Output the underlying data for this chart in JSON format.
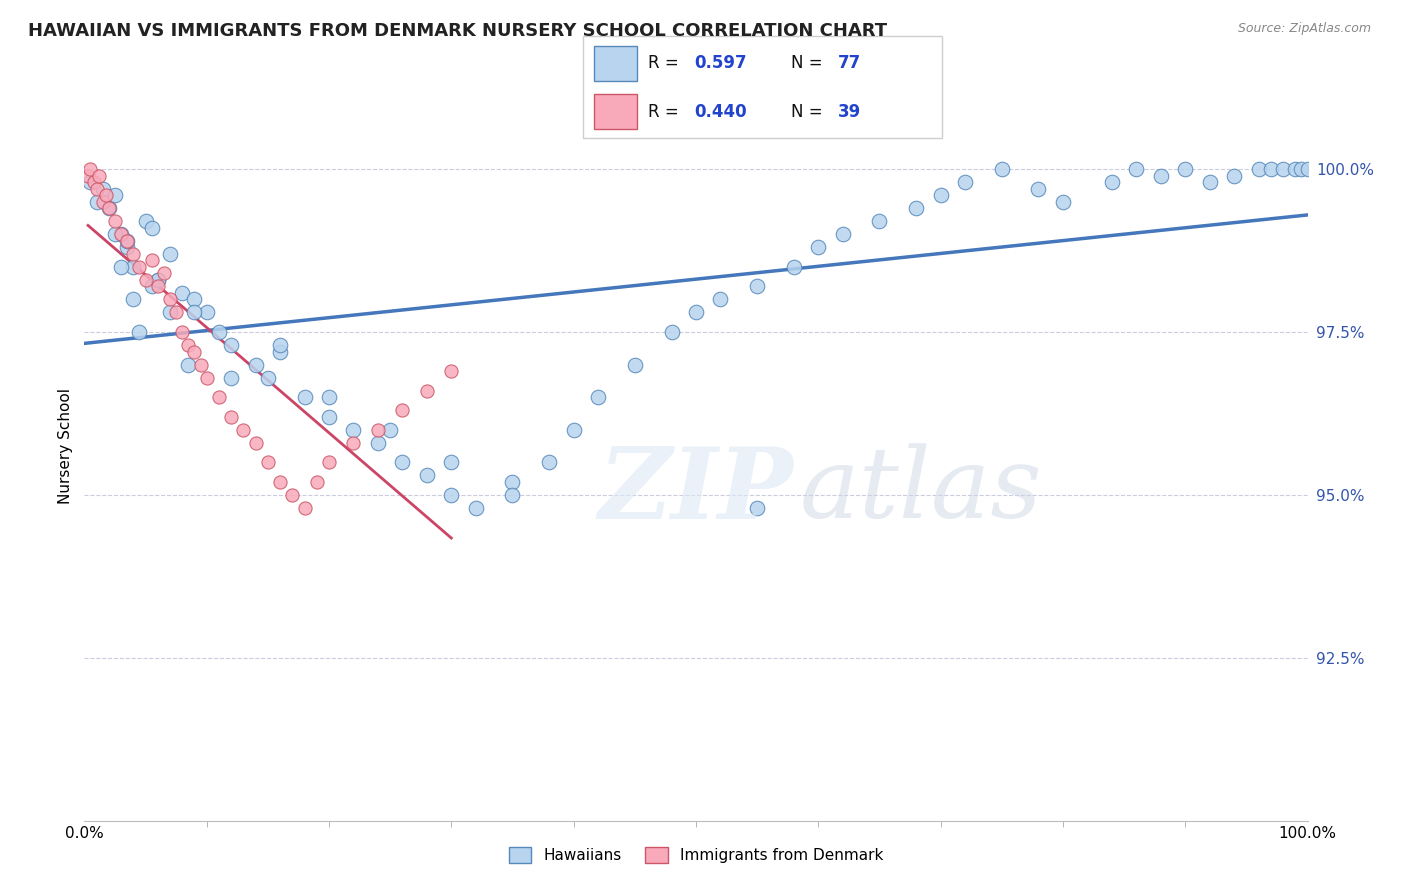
{
  "title": "HAWAIIAN VS IMMIGRANTS FROM DENMARK NURSERY SCHOOL CORRELATION CHART",
  "source": "Source: ZipAtlas.com",
  "ylabel": "Nursery School",
  "yticks": [
    92.5,
    95.0,
    97.5,
    100.0
  ],
  "ytick_labels": [
    "92.5%",
    "95.0%",
    "97.5%",
    "100.0%"
  ],
  "xmin": 0.0,
  "xmax": 100.0,
  "ymin": 90.0,
  "ymax": 101.5,
  "legend_blue_R": "0.597",
  "legend_blue_N": "77",
  "legend_pink_R": "0.440",
  "legend_pink_N": "39",
  "legend_label_blue": "Hawaiians",
  "legend_label_pink": "Immigrants from Denmark",
  "blue_face": "#b8d4ee",
  "blue_edge": "#5588bb",
  "blue_trend": "#4477bb",
  "pink_face": "#f8aabb",
  "pink_edge": "#cc5566",
  "pink_trend": "#cc4466",
  "blue_scatter_x": [
    0.5,
    1.0,
    1.5,
    2.0,
    2.5,
    3.0,
    3.5,
    4.0,
    5.0,
    5.5,
    6.0,
    7.0,
    8.0,
    9.0,
    10.0,
    11.0,
    12.0,
    14.0,
    15.0,
    16.0,
    18.0,
    20.0,
    22.0,
    24.0,
    26.0,
    28.0,
    30.0,
    32.0,
    35.0,
    38.0,
    40.0,
    42.0,
    45.0,
    48.0,
    50.0,
    52.0,
    55.0,
    58.0,
    60.0,
    62.0,
    65.0,
    68.0,
    70.0,
    72.0,
    75.0,
    78.0,
    80.0,
    84.0,
    86.0,
    88.0,
    90.0,
    92.0,
    94.0,
    96.0,
    97.0,
    98.0,
    99.0,
    99.5,
    100.0,
    3.0,
    4.0,
    2.5,
    5.5,
    7.0,
    3.5,
    6.0,
    4.5,
    8.5,
    12.0,
    16.0,
    9.0,
    20.0,
    25.0,
    30.0,
    35.0,
    55.0
  ],
  "blue_scatter_y": [
    99.8,
    99.5,
    99.7,
    99.4,
    99.6,
    99.0,
    98.8,
    98.5,
    99.2,
    99.1,
    98.3,
    98.7,
    98.1,
    98.0,
    97.8,
    97.5,
    97.3,
    97.0,
    96.8,
    97.2,
    96.5,
    96.2,
    96.0,
    95.8,
    95.5,
    95.3,
    95.0,
    94.8,
    95.2,
    95.5,
    96.0,
    96.5,
    97.0,
    97.5,
    97.8,
    98.0,
    98.2,
    98.5,
    98.8,
    99.0,
    99.2,
    99.4,
    99.6,
    99.8,
    100.0,
    99.7,
    99.5,
    99.8,
    100.0,
    99.9,
    100.0,
    99.8,
    99.9,
    100.0,
    100.0,
    100.0,
    100.0,
    100.0,
    100.0,
    98.5,
    98.0,
    99.0,
    98.2,
    97.8,
    98.9,
    98.3,
    97.5,
    97.0,
    96.8,
    97.3,
    97.8,
    96.5,
    96.0,
    95.5,
    95.0,
    94.8
  ],
  "pink_scatter_x": [
    0.3,
    0.5,
    0.8,
    1.0,
    1.2,
    1.5,
    1.8,
    2.0,
    2.5,
    3.0,
    3.5,
    4.0,
    4.5,
    5.0,
    5.5,
    6.0,
    6.5,
    7.0,
    7.5,
    8.0,
    8.5,
    9.0,
    9.5,
    10.0,
    11.0,
    12.0,
    13.0,
    14.0,
    15.0,
    16.0,
    17.0,
    18.0,
    19.0,
    20.0,
    22.0,
    24.0,
    26.0,
    28.0,
    30.0
  ],
  "pink_scatter_y": [
    99.9,
    100.0,
    99.8,
    99.7,
    99.9,
    99.5,
    99.6,
    99.4,
    99.2,
    99.0,
    98.9,
    98.7,
    98.5,
    98.3,
    98.6,
    98.2,
    98.4,
    98.0,
    97.8,
    97.5,
    97.3,
    97.2,
    97.0,
    96.8,
    96.5,
    96.2,
    96.0,
    95.8,
    95.5,
    95.2,
    95.0,
    94.8,
    95.2,
    95.5,
    95.8,
    96.0,
    96.3,
    96.6,
    96.9
  ]
}
